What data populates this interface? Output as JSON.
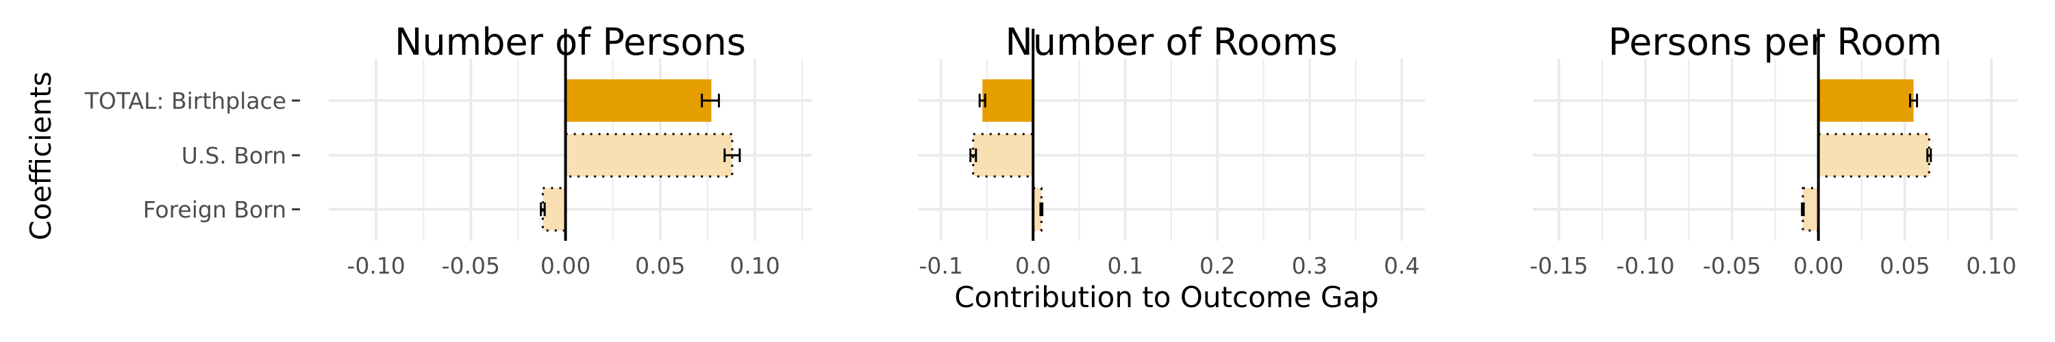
{
  "figure": {
    "y_axis_title": "Coefficients",
    "x_axis_title": "Contribution to Outcome Gap",
    "colors": {
      "solid": "#E69F00",
      "light": "#F8E0B3",
      "grid": "#EBEBEB",
      "zero": "#000000",
      "tick_text": "#4D4D4D"
    }
  },
  "chart_data": [
    {
      "type": "bar",
      "orientation": "horizontal",
      "title": "Number of Persons",
      "categories": [
        "TOTAL: Birthplace",
        "U.S. Born",
        "Foreign Born"
      ],
      "values": [
        0.077,
        0.088,
        -0.012
      ],
      "ci_low": [
        0.072,
        0.084,
        -0.013
      ],
      "ci_high": [
        0.081,
        0.092,
        -0.011
      ],
      "styles": [
        "solid",
        "dotted",
        "dotted"
      ],
      "xlim": [
        -0.125,
        0.13
      ],
      "xticks": [
        -0.1,
        -0.05,
        0.0,
        0.05,
        0.1
      ],
      "xtick_labels": [
        "-0.10",
        "-0.05",
        "0.00",
        "0.05",
        "0.10"
      ],
      "grid": true
    },
    {
      "type": "bar",
      "orientation": "horizontal",
      "title": "Number of Rooms",
      "categories": [
        "TOTAL: Birthplace",
        "U.S. Born",
        "Foreign Born"
      ],
      "values": [
        -0.055,
        -0.065,
        0.009
      ],
      "ci_low": [
        -0.058,
        -0.068,
        0.008
      ],
      "ci_high": [
        -0.052,
        -0.062,
        0.01
      ],
      "styles": [
        "solid",
        "dotted",
        "dotted"
      ],
      "xlim": [
        -0.125,
        0.425
      ],
      "xticks": [
        -0.1,
        0.0,
        0.1,
        0.2,
        0.3,
        0.4
      ],
      "xtick_labels": [
        "-0.1",
        "0.0",
        "0.1",
        "0.2",
        "0.3",
        "0.4"
      ],
      "grid": true
    },
    {
      "type": "bar",
      "orientation": "horizontal",
      "title": "Persons per Room",
      "categories": [
        "TOTAL: Birthplace",
        "U.S. Born",
        "Foreign Born"
      ],
      "values": [
        0.055,
        0.064,
        -0.009
      ],
      "ci_low": [
        0.053,
        0.063,
        -0.0095
      ],
      "ci_high": [
        0.057,
        0.065,
        -0.0085
      ],
      "styles": [
        "solid",
        "dotted",
        "dotted"
      ],
      "xlim": [
        -0.165,
        0.115
      ],
      "xticks": [
        -0.15,
        -0.1,
        -0.05,
        0.0,
        0.05,
        0.1
      ],
      "xtick_labels": [
        "-0.15",
        "-0.10",
        "-0.05",
        "0.00",
        "0.05",
        "0.10"
      ],
      "grid": true
    }
  ]
}
